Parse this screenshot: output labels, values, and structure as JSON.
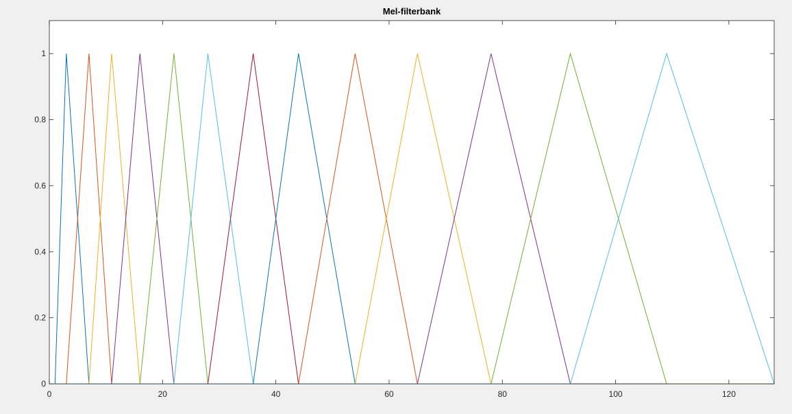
{
  "window": {
    "background": "#f0f0f0"
  },
  "chart_data": {
    "type": "line",
    "title": "Mel-filterbank",
    "xlabel": "",
    "ylabel": "",
    "xlim": [
      0,
      128
    ],
    "ylim": [
      0,
      1.1
    ],
    "xticks": [
      0,
      20,
      40,
      60,
      80,
      100,
      120
    ],
    "yticks": [
      0,
      0.2,
      0.4,
      0.6,
      0.8,
      1
    ],
    "ytick_labels": [
      "0",
      "0.2",
      "0.4",
      "0.6",
      "0.8",
      "1"
    ],
    "grid": false,
    "legend": "none",
    "axes_background": "#ffffff",
    "axis_color": "#262626",
    "series": [
      {
        "color": "#0072bd",
        "x": [
          1,
          3,
          7,
          128
        ],
        "y": [
          0,
          1,
          0,
          0
        ]
      },
      {
        "color": "#d95319",
        "x": [
          1,
          3,
          7,
          11,
          128
        ],
        "y": [
          0,
          0,
          1,
          0,
          0
        ]
      },
      {
        "color": "#edb120",
        "x": [
          1,
          7,
          11,
          16,
          128
        ],
        "y": [
          0,
          0,
          1,
          0,
          0
        ]
      },
      {
        "color": "#7e2f8e",
        "x": [
          1,
          11,
          16,
          22,
          128
        ],
        "y": [
          0,
          0,
          1,
          0,
          0
        ]
      },
      {
        "color": "#77ac30",
        "x": [
          1,
          16,
          22,
          28,
          128
        ],
        "y": [
          0,
          0,
          1,
          0,
          0
        ]
      },
      {
        "color": "#4dbeee",
        "x": [
          1,
          22,
          28,
          36,
          128
        ],
        "y": [
          0,
          0,
          1,
          0,
          0
        ]
      },
      {
        "color": "#a2142f",
        "x": [
          1,
          28,
          36,
          44,
          128
        ],
        "y": [
          0,
          0,
          1,
          0,
          0
        ]
      },
      {
        "color": "#0072bd",
        "x": [
          1,
          36,
          44,
          54,
          128
        ],
        "y": [
          0,
          0,
          1,
          0,
          0
        ]
      },
      {
        "color": "#d95319",
        "x": [
          1,
          44,
          54,
          65,
          128
        ],
        "y": [
          0,
          0,
          1,
          0,
          0
        ]
      },
      {
        "color": "#edb120",
        "x": [
          1,
          54,
          65,
          78,
          128
        ],
        "y": [
          0,
          0,
          1,
          0,
          0
        ]
      },
      {
        "color": "#7e2f8e",
        "x": [
          1,
          65,
          78,
          92,
          128
        ],
        "y": [
          0,
          0,
          1,
          0,
          0
        ]
      },
      {
        "color": "#77ac30",
        "x": [
          1,
          78,
          92,
          109,
          128
        ],
        "y": [
          0,
          0,
          1,
          0,
          0
        ]
      },
      {
        "color": "#4dbeee",
        "x": [
          1,
          92,
          109,
          128
        ],
        "y": [
          0,
          0,
          1,
          0
        ]
      }
    ]
  }
}
